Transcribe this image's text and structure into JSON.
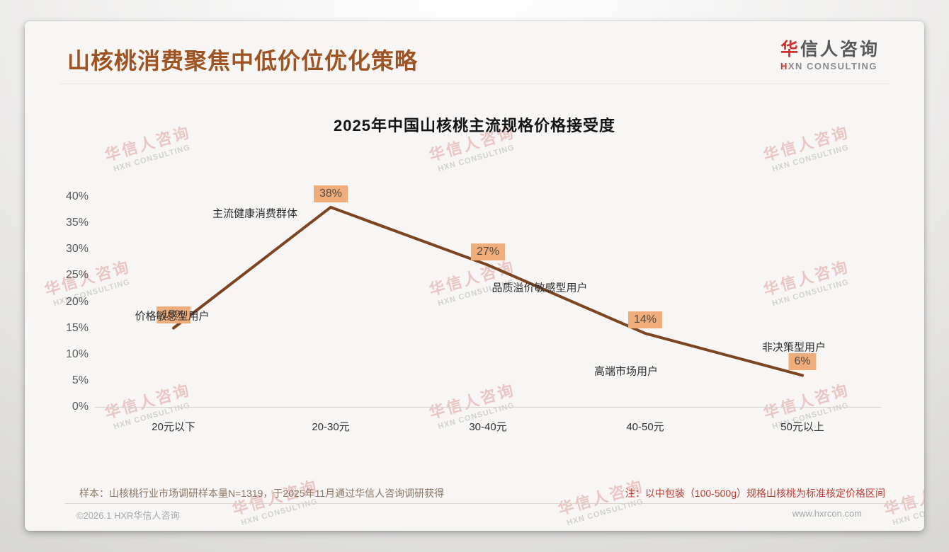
{
  "header": {
    "title": "山核桃消费聚焦中低价位优化策略",
    "logo_cn_accent": "华",
    "logo_cn_rest": "信人咨询",
    "logo_en_accent": "H",
    "logo_en_rest": "XN CONSULTING"
  },
  "watermark": {
    "cn": "华信人咨询",
    "en": "HXN CONSULTING"
  },
  "chart_data": {
    "type": "line",
    "title": "2025年中国山核桃主流规格价格接受度",
    "categories": [
      "20元以下",
      "20-30元",
      "30-40元",
      "40-50元",
      "50元以上"
    ],
    "values": [
      15,
      38,
      27,
      14,
      6
    ],
    "data_labels": [
      "15%",
      "38%",
      "27%",
      "14%",
      "6%"
    ],
    "annotations": [
      "价格敏感型用户",
      "主流健康消费群体",
      "品质溢价敏感型用户",
      "高端市场用户",
      "非决策型用户"
    ],
    "yticks": [
      "0%",
      "5%",
      "10%",
      "15%",
      "20%",
      "25%",
      "30%",
      "35%",
      "40%"
    ],
    "ytick_values": [
      0,
      5,
      10,
      15,
      20,
      25,
      30,
      35,
      40
    ],
    "ylim": [
      0,
      40
    ],
    "xlabel": "",
    "ylabel": "",
    "grid": "baseline-only",
    "legend": "none",
    "line_color": "#7c4420",
    "label_bg_color": "#efad7c"
  },
  "footer": {
    "sample_note": "样本：山核桃行业市场调研样本量N=1319，于2025年11月通过华信人咨询调研获得",
    "price_note": "注：以中包装（100-500g）规格山核桃为标准核定价格区间",
    "copyright": "©2026.1 HXR华信人咨询",
    "website": "www.hxrcon.com"
  }
}
